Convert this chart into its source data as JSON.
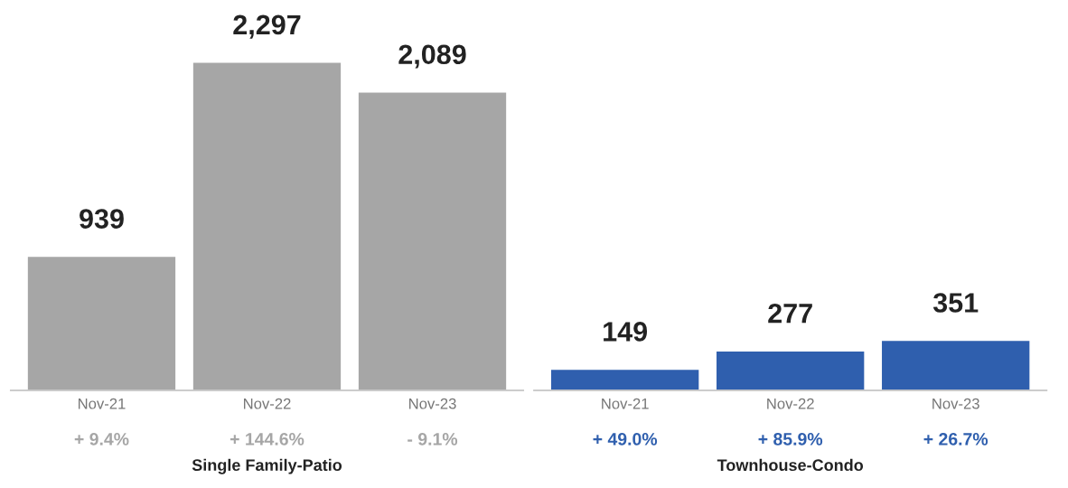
{
  "chart_data": [
    {
      "type": "bar",
      "title": "Single Family-Patio",
      "categories": [
        "Nov-21",
        "Nov-22",
        "Nov-23"
      ],
      "series": [
        {
          "color": "#a6a6a6",
          "values": [
            939,
            2297,
            2089
          ],
          "value_labels": [
            "939",
            "2,297",
            "2,089"
          ]
        }
      ],
      "annotations": [
        "+ 9.4%",
        "+ 144.6%",
        "- 9.1%"
      ]
    },
    {
      "type": "bar",
      "title": "Townhouse-Condo",
      "categories": [
        "Nov-21",
        "Nov-22",
        "Nov-23"
      ],
      "series": [
        {
          "color": "#2f5fae",
          "values": [
            149,
            277,
            351
          ],
          "value_labels": [
            "149",
            "277",
            "351"
          ]
        }
      ],
      "annotations": [
        "+ 49.0%",
        "+ 85.9%",
        "+ 26.7%"
      ]
    }
  ]
}
